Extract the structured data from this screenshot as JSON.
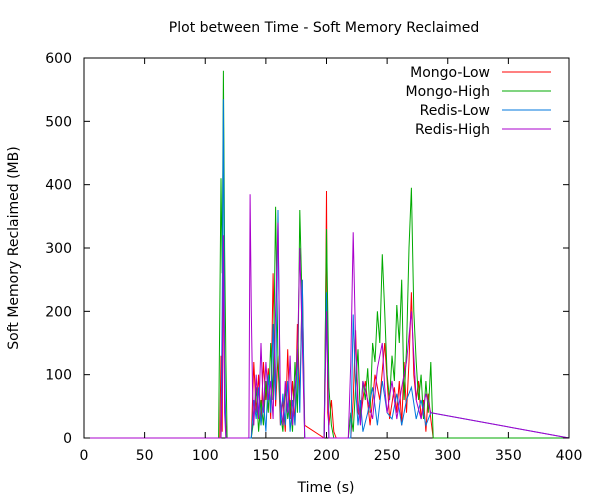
{
  "chart_data": {
    "type": "line",
    "title": "Plot between Time - Soft Memory Reclaimed",
    "xlabel": "Time (s)",
    "ylabel": "Soft Memory Reclaimed (MB)",
    "xlim": [
      0,
      400
    ],
    "ylim": [
      0,
      600
    ],
    "xticks": [
      0,
      50,
      100,
      150,
      200,
      250,
      300,
      350,
      400
    ],
    "yticks": [
      0,
      100,
      200,
      300,
      400,
      500,
      600
    ],
    "grid": false,
    "legend_position": "top-right",
    "series": [
      {
        "name": "Mongo-Low",
        "color": "#ff0000",
        "x": [
          0,
          112,
          113,
          114,
          115,
          116,
          117,
          118,
          138,
          140,
          142,
          144,
          146,
          148,
          150,
          152,
          154,
          156,
          158,
          160,
          162,
          164,
          166,
          168,
          170,
          172,
          174,
          176,
          178,
          180,
          182,
          198,
          199,
          200,
          201,
          202,
          204,
          206,
          208,
          220,
          222,
          224,
          226,
          228,
          232,
          236,
          240,
          244,
          248,
          252,
          256,
          258,
          260,
          262,
          264,
          266,
          268,
          270,
          272,
          274,
          276,
          278,
          280,
          282,
          284,
          286,
          288,
          400
        ],
        "y": [
          0,
          0,
          130,
          10,
          300,
          80,
          20,
          0,
          0,
          120,
          40,
          100,
          20,
          120,
          60,
          110,
          30,
          260,
          50,
          130,
          20,
          60,
          10,
          140,
          30,
          90,
          20,
          180,
          60,
          250,
          20,
          0,
          150,
          390,
          40,
          20,
          60,
          10,
          0,
          0,
          60,
          170,
          40,
          30,
          90,
          20,
          100,
          60,
          150,
          30,
          80,
          40,
          90,
          20,
          120,
          40,
          120,
          230,
          100,
          60,
          90,
          30,
          60,
          10,
          70,
          30,
          0,
          0
        ]
      },
      {
        "name": "Mongo-High",
        "color": "#00aa00",
        "x": [
          0,
          111,
          112,
          113,
          114,
          115,
          116,
          117,
          118,
          138,
          140,
          142,
          144,
          146,
          148,
          150,
          152,
          154,
          156,
          158,
          160,
          162,
          164,
          166,
          168,
          170,
          172,
          174,
          176,
          178,
          180,
          182,
          198,
          200,
          202,
          204,
          206,
          218,
          220,
          222,
          224,
          226,
          228,
          230,
          232,
          234,
          236,
          238,
          240,
          242,
          244,
          246,
          248,
          250,
          252,
          254,
          256,
          258,
          260,
          262,
          264,
          266,
          268,
          270,
          272,
          274,
          276,
          278,
          280,
          282,
          284,
          286,
          288,
          400
        ],
        "y": [
          0,
          0,
          200,
          410,
          260,
          580,
          300,
          120,
          0,
          0,
          30,
          80,
          10,
          60,
          20,
          90,
          40,
          150,
          60,
          365,
          120,
          40,
          10,
          80,
          30,
          60,
          10,
          120,
          40,
          360,
          200,
          0,
          0,
          330,
          80,
          20,
          0,
          0,
          40,
          10,
          80,
          140,
          30,
          90,
          60,
          110,
          40,
          150,
          120,
          200,
          150,
          290,
          200,
          100,
          60,
          130,
          90,
          210,
          150,
          250,
          60,
          140,
          300,
          395,
          200,
          120,
          60,
          100,
          30,
          90,
          40,
          120,
          0,
          0
        ]
      },
      {
        "name": "Redis-Low",
        "color": "#0077dd",
        "x": [
          0,
          113,
          114,
          115,
          116,
          117,
          138,
          140,
          142,
          144,
          146,
          148,
          150,
          152,
          154,
          156,
          158,
          160,
          162,
          164,
          166,
          168,
          170,
          172,
          174,
          176,
          178,
          180,
          182,
          198,
          200,
          202,
          220,
          222,
          224,
          226,
          228,
          230,
          234,
          238,
          242,
          246,
          250,
          254,
          258,
          262,
          266,
          270,
          274,
          278,
          282,
          286,
          400
        ],
        "y": [
          0,
          0,
          200,
          535,
          120,
          0,
          0,
          60,
          30,
          80,
          20,
          60,
          10,
          100,
          40,
          180,
          60,
          360,
          20,
          70,
          20,
          90,
          10,
          60,
          20,
          140,
          40,
          250,
          0,
          0,
          230,
          0,
          0,
          195,
          80,
          20,
          60,
          10,
          40,
          80,
          20,
          90,
          40,
          30,
          70,
          20,
          60,
          80,
          30,
          60,
          20,
          40,
          0
        ]
      },
      {
        "name": "Redis-High",
        "color": "#aa00cc",
        "x": [
          0,
          113,
          114,
          115,
          116,
          117,
          136,
          137,
          138,
          139,
          140,
          142,
          144,
          146,
          148,
          150,
          152,
          154,
          156,
          158,
          160,
          162,
          164,
          166,
          168,
          170,
          172,
          174,
          176,
          178,
          180,
          182,
          198,
          200,
          202,
          218,
          220,
          222,
          224,
          226,
          228,
          230,
          234,
          238,
          242,
          246,
          248,
          250,
          254,
          258,
          262,
          266,
          270,
          274,
          278,
          282,
          286,
          400
        ],
        "y": [
          0,
          0,
          90,
          320,
          40,
          0,
          0,
          385,
          200,
          80,
          20,
          100,
          30,
          150,
          40,
          120,
          60,
          90,
          30,
          200,
          340,
          60,
          20,
          90,
          40,
          130,
          20,
          80,
          120,
          300,
          150,
          0,
          0,
          200,
          0,
          0,
          120,
          325,
          150,
          60,
          20,
          90,
          60,
          30,
          110,
          150,
          80,
          40,
          90,
          30,
          80,
          120,
          200,
          60,
          30,
          70,
          40,
          0
        ]
      }
    ]
  }
}
